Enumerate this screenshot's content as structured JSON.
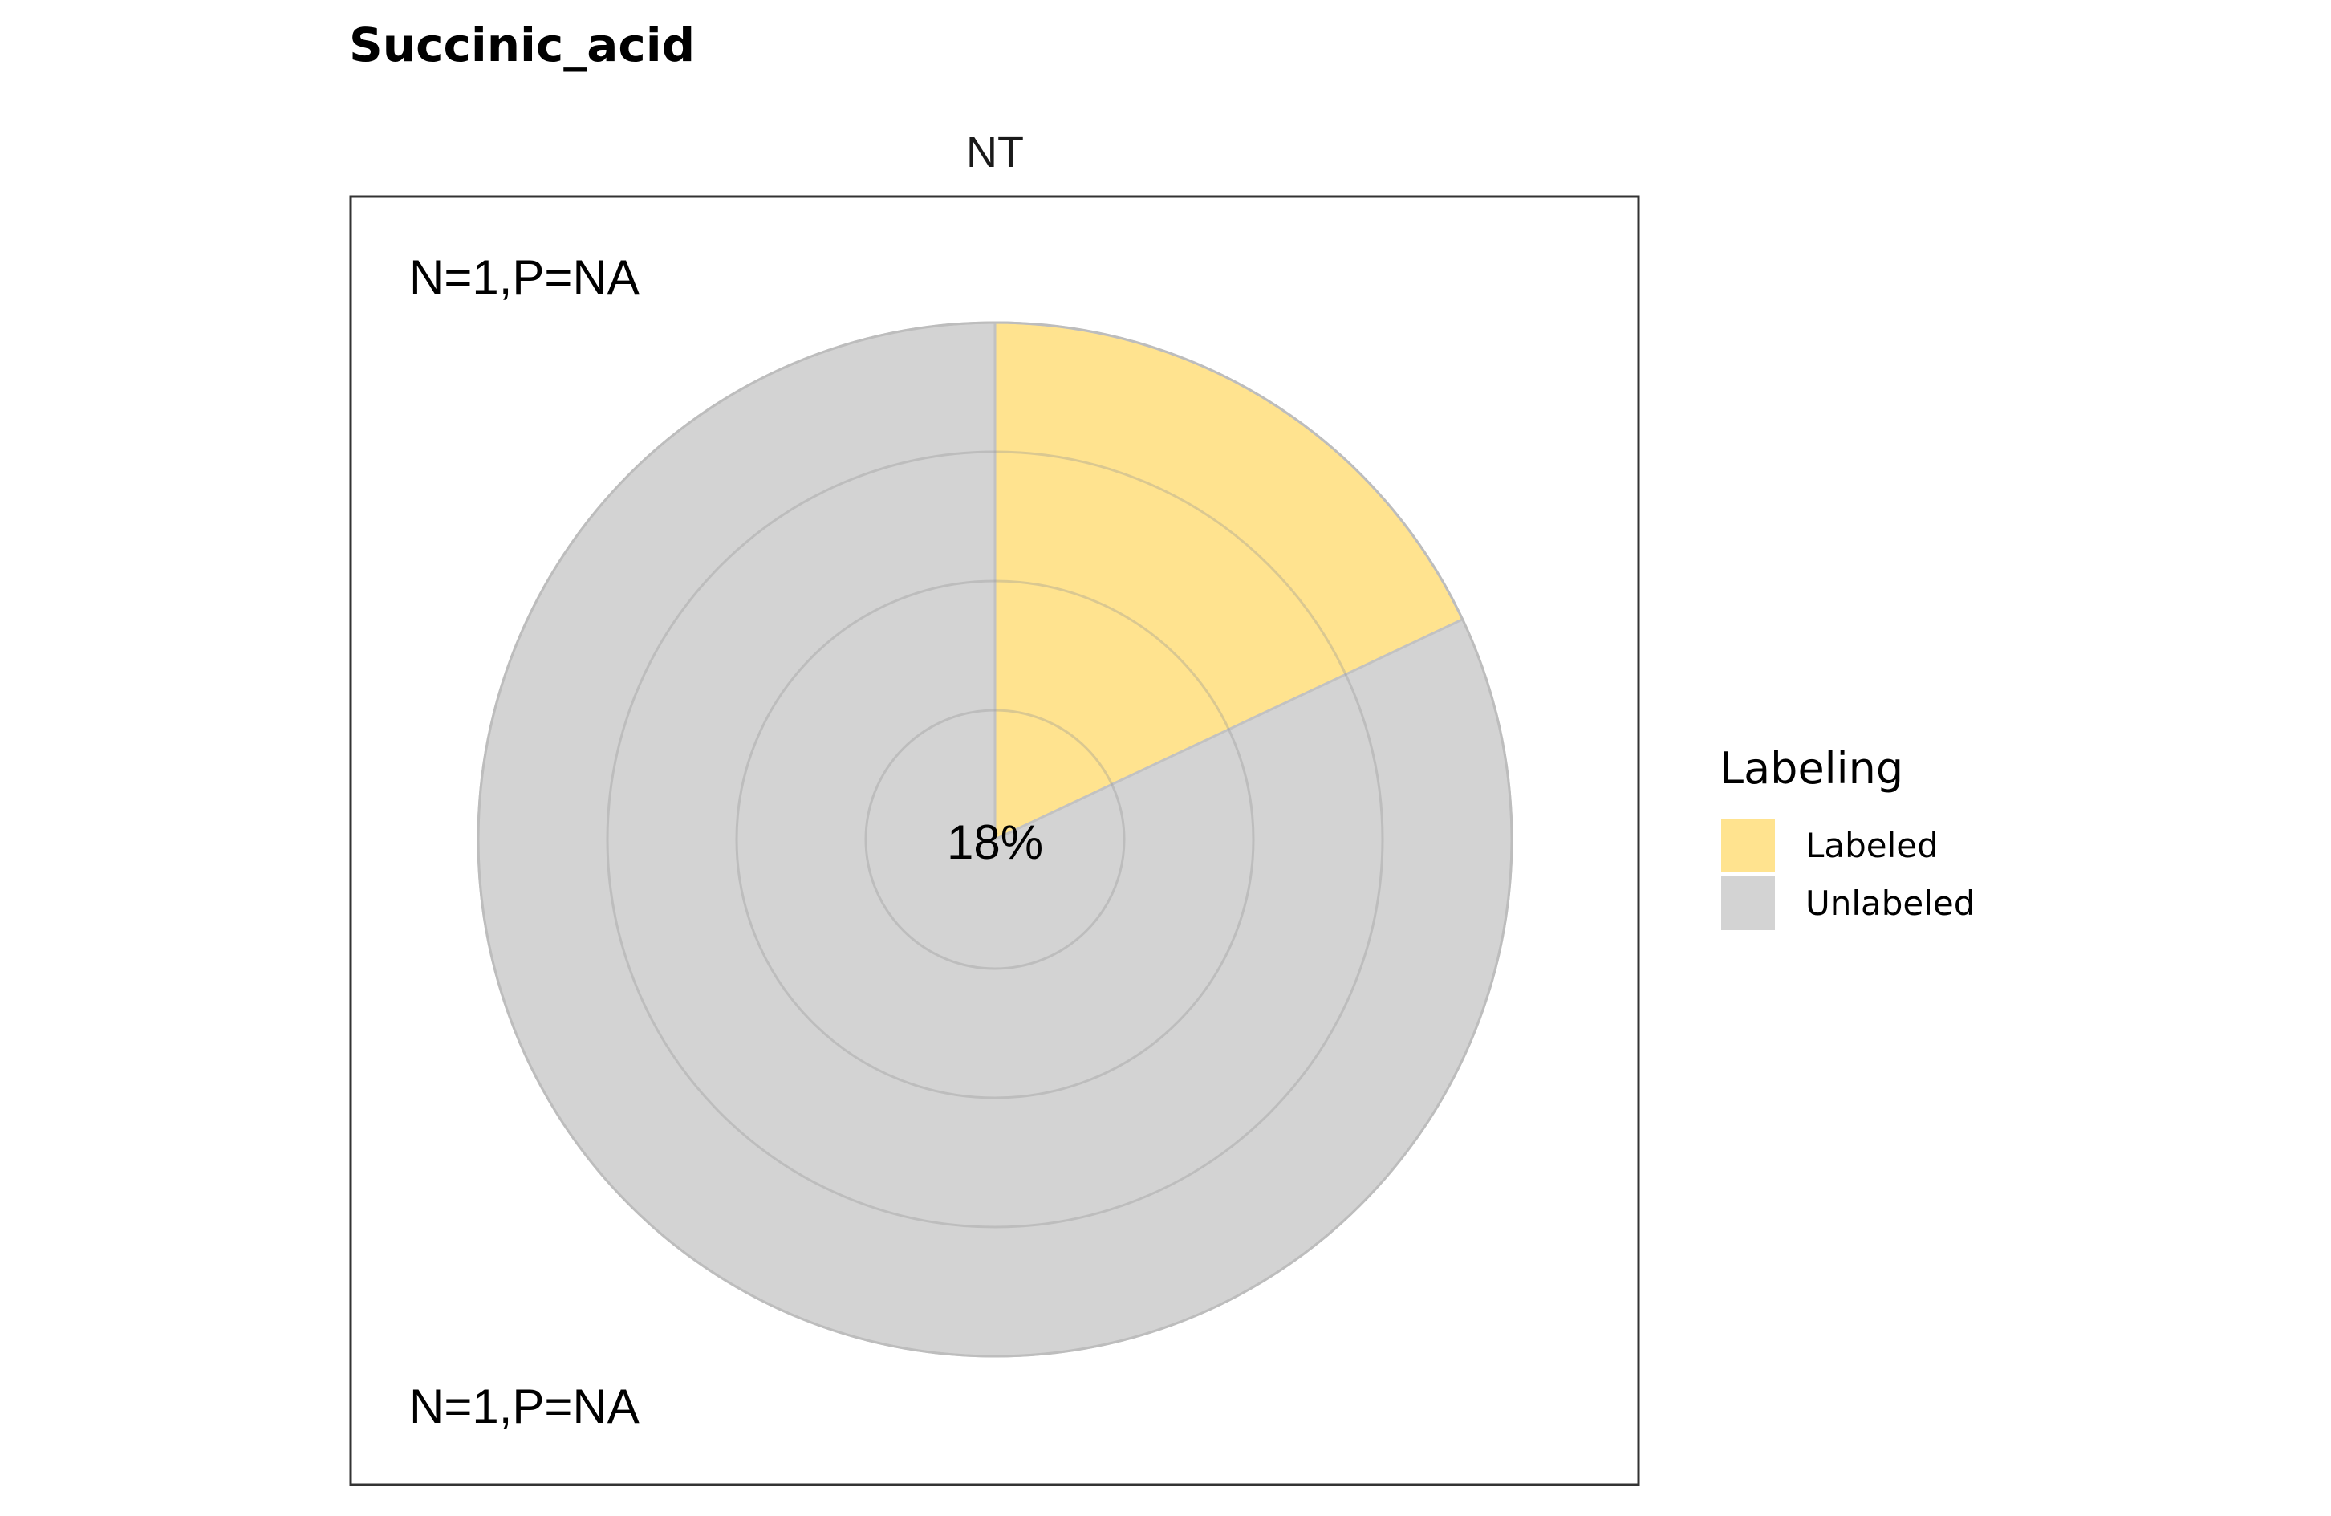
{
  "chart_data": {
    "type": "pie",
    "title": "Succinic_acid",
    "panels": [
      {
        "strip_label": "NT",
        "annotation_top": "N=1,P=NA",
        "annotation_bottom": "N=1,P=NA",
        "center_label": "18%",
        "slices": [
          {
            "name": "Labeled",
            "value": 18,
            "color": "#FFE38F"
          },
          {
            "name": "Unlabeled",
            "value": 82,
            "color": "#D3D3D3"
          }
        ],
        "grid_rings": 4
      }
    ],
    "legend": {
      "title": "Labeling",
      "position": "right",
      "entries": [
        {
          "label": "Labeled",
          "color": "#FFE38F"
        },
        {
          "label": "Unlabeled",
          "color": "#D3D3D3"
        }
      ]
    }
  }
}
